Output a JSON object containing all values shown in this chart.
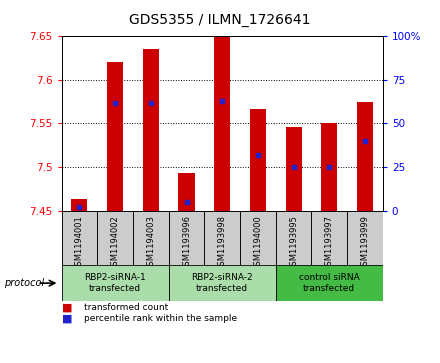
{
  "title": "GDS5355 / ILMN_1726641",
  "samples": [
    "GSM1194001",
    "GSM1194002",
    "GSM1194003",
    "GSM1193996",
    "GSM1193998",
    "GSM1194000",
    "GSM1193995",
    "GSM1193997",
    "GSM1193999"
  ],
  "transformed_counts": [
    7.463,
    7.62,
    7.635,
    7.493,
    7.651,
    7.567,
    7.546,
    7.55,
    7.575
  ],
  "percentile_ranks": [
    2,
    62,
    62,
    5,
    63,
    32,
    25,
    25,
    40
  ],
  "ymin": 7.45,
  "ymax": 7.65,
  "yticks": [
    7.45,
    7.5,
    7.55,
    7.6,
    7.65
  ],
  "right_yticks": [
    0,
    25,
    50,
    75,
    100
  ],
  "bar_color": "#cc0000",
  "dot_color": "#2222cc",
  "bar_width": 0.45,
  "groups": [
    {
      "label": "RBP2-siRNA-1\ntransfected",
      "indices": [
        0,
        1,
        2
      ],
      "color": "#aaddaa"
    },
    {
      "label": "RBP2-siRNA-2\ntransfected",
      "indices": [
        3,
        4,
        5
      ],
      "color": "#aaddaa"
    },
    {
      "label": "control siRNA\ntransfected",
      "indices": [
        6,
        7,
        8
      ],
      "color": "#44bb44"
    }
  ],
  "sample_box_color": "#cccccc",
  "protocol_label": "protocol",
  "legend_items": [
    {
      "color": "#cc0000",
      "label": "transformed count"
    },
    {
      "color": "#2222cc",
      "label": "percentile rank within the sample"
    }
  ],
  "background_color": "#ffffff",
  "title_fontsize": 10,
  "tick_fontsize": 7.5,
  "label_fontsize": 7
}
